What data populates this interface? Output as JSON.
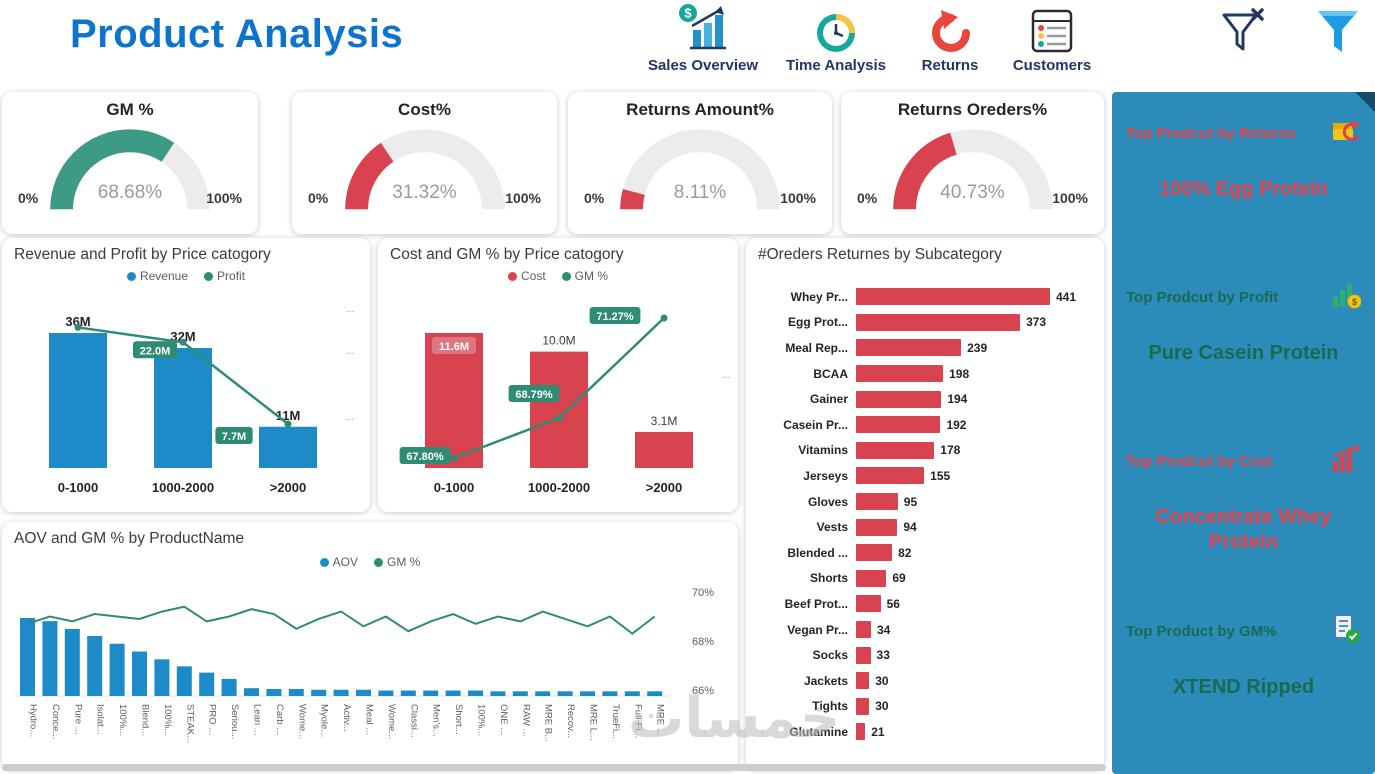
{
  "header": {
    "title": "Product Analysis",
    "nav": [
      {
        "label": "Sales Overview",
        "icon": "sales-overview-icon"
      },
      {
        "label": "Time Analysis",
        "icon": "time-analysis-icon"
      },
      {
        "label": "Returns",
        "icon": "returns-icon"
      },
      {
        "label": "Customers",
        "icon": "customers-icon"
      }
    ],
    "filters": {
      "clear_filter_icon": "funnel-clear-icon",
      "filter_icon": "funnel-filled-icon"
    }
  },
  "colors": {
    "header_title": "#0d74ce",
    "nav_label": "#1f3864",
    "bar_blue": "#1d8bc8",
    "bar_red": "#d9434f",
    "line_teal": "#2e8b74",
    "sidebar_bg": "#2b8cba",
    "sidebar_red": "#e8414d",
    "sidebar_green": "#1a6a52"
  },
  "gauges": [
    {
      "title": "GM %",
      "value": 68.68,
      "display": "68.68%",
      "min": "0%",
      "max": "100%",
      "color": "#3d9b85"
    },
    {
      "title": "Cost%",
      "value": 31.32,
      "display": "31.32%",
      "min": "0%",
      "max": "100%",
      "color": "#d9434f"
    },
    {
      "title": "Returns Amount%",
      "value": 8.11,
      "display": "8.11%",
      "min": "0%",
      "max": "100%",
      "color": "#d9434f"
    },
    {
      "title": "Returns Oreders%",
      "value": 40.73,
      "display": "40.73%",
      "min": "0%",
      "max": "100%",
      "color": "#d9434f"
    }
  ],
  "chart_data": [
    {
      "id": "revenue-profit-by-price",
      "type": "combo-bar-line",
      "title": "Revenue and Profit by Price catogory",
      "categories": [
        "0-1000",
        "1000-2000",
        ">2000"
      ],
      "series": [
        {
          "name": "Revenue",
          "type": "bar",
          "color": "#1d8bc8",
          "unit": "M",
          "values": [
            36,
            32,
            11
          ],
          "labels": [
            "36M",
            "32M",
            "11M"
          ]
        },
        {
          "name": "Profit",
          "type": "line",
          "color": "#2e8b74",
          "unit": "M",
          "values": [
            24.6,
            22.0,
            7.7
          ],
          "labels": [
            "",
            "22.0M",
            "7.7M"
          ]
        }
      ],
      "right_axis_ticks": [
        "...",
        "...",
        "..."
      ]
    },
    {
      "id": "cost-gm-by-price",
      "type": "combo-bar-line",
      "title": "Cost and GM % by Price catogory",
      "categories": [
        "0-1000",
        "1000-2000",
        ">2000"
      ],
      "series": [
        {
          "name": "Cost",
          "type": "bar",
          "color": "#d9434f",
          "unit": "M",
          "values": [
            11.6,
            10.0,
            3.1
          ],
          "labels": [
            "11.6M",
            "10.0M",
            "3.1M"
          ]
        },
        {
          "name": "GM %",
          "type": "line",
          "color": "#2e8b74",
          "unit": "%",
          "values": [
            67.8,
            68.79,
            71.27
          ],
          "labels": [
            "67.80%",
            "68.79%",
            "71.27%"
          ]
        }
      ],
      "right_axis_ticks": [
        "..."
      ]
    },
    {
      "id": "orders-returns-by-subcategory",
      "type": "hbar",
      "title": "#Oreders Returnes by Subcategory",
      "color": "#d9434f",
      "xmax": 441,
      "categories": [
        "Whey Pr...",
        "Egg Prot...",
        "Meal Rep...",
        "BCAA",
        "Gainer",
        "Casein Pr...",
        "Vitamins",
        "Jerseys",
        "Gloves",
        "Vests",
        "Blended ...",
        "Shorts",
        "Beef Prot...",
        "Vegan Pr...",
        "Socks",
        "Jackets",
        "Tights",
        "Glutamine"
      ],
      "values": [
        441,
        373,
        239,
        198,
        194,
        192,
        178,
        155,
        95,
        94,
        82,
        69,
        56,
        34,
        33,
        30,
        30,
        21
      ]
    },
    {
      "id": "aov-gm-by-product",
      "type": "combo-bar-line",
      "title": "AOV and GM % by ProductName",
      "categories": [
        "Hydro...",
        "Conce...",
        "Pure ...",
        "Isolat...",
        "100%...",
        "Blend...",
        "100%...",
        "STEAK...",
        "PRO ...",
        "Seriou...",
        "Lean ...",
        "Carb ...",
        "Wome...",
        "Myole...",
        "Activ...",
        "Meal ...",
        "Wome...",
        "Classi...",
        "Men's...",
        "Short...",
        "100%...",
        "ONE ...",
        "RAW ...",
        "MRE B...",
        "Recov...",
        "MRE L...",
        "TrueFi...",
        "Full-Fi...",
        "MRE ..."
      ],
      "series": [
        {
          "name": "AOV",
          "type": "bar",
          "color": "#1d8bc8",
          "values_relative_pct": [
            100,
            96,
            86,
            77,
            67,
            57,
            47,
            38,
            30,
            22,
            10,
            9,
            9,
            8,
            8,
            8,
            7,
            7,
            7,
            7,
            7,
            6,
            6,
            6,
            6,
            6,
            6,
            6,
            6
          ]
        },
        {
          "name": "GM %",
          "type": "line",
          "color": "#2e8b74",
          "unit": "%",
          "values": [
            68.7,
            69.0,
            68.8,
            69.1,
            69.0,
            68.9,
            69.2,
            69.4,
            68.8,
            69.0,
            69.3,
            69.1,
            68.5,
            68.9,
            69.2,
            68.6,
            69.0,
            68.4,
            68.8,
            69.1,
            68.7,
            69.0,
            68.8,
            69.2,
            68.9,
            68.6,
            69.0,
            68.3,
            69.0
          ]
        }
      ],
      "right_axis_ticks": [
        "70%",
        "68%",
        "66%"
      ],
      "right_axis_range": [
        66,
        70
      ]
    }
  ],
  "sidebar": {
    "items": [
      {
        "title": "Top Prodcut by Returns",
        "value": "100% Egg Protein",
        "color": "#e8414d",
        "icon": "returns-box-icon"
      },
      {
        "title": "Top Prodcut by Profit",
        "value": "Pure Casein Protein",
        "color": "#1a6a52",
        "icon": "profit-chart-icon"
      },
      {
        "title": "Top Prodcut by Cost",
        "value": "Concentrate Whey Protein",
        "color": "#e8414d",
        "icon": "cost-chart-icon"
      },
      {
        "title": "Top Product by GM%",
        "value": "XTEND Ripped",
        "color": "#1a6a52",
        "icon": "gm-doc-icon"
      }
    ]
  },
  "watermark": {
    "text": "خمسات"
  }
}
